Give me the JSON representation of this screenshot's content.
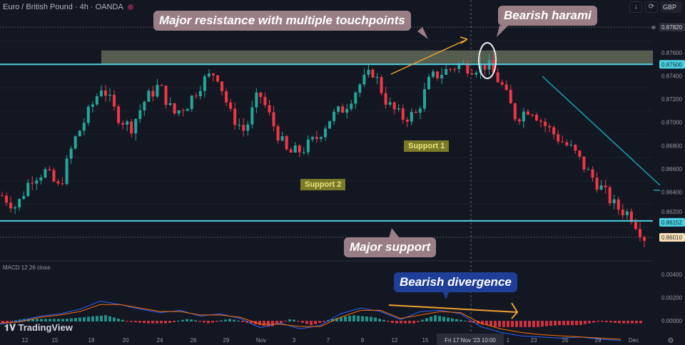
{
  "header": {
    "symbol": "Euro / British Pound · 4h · OANDA",
    "currency": "GBP"
  },
  "annotations": {
    "resistance": "Major resistance with multiple touchpoints",
    "harami": "Bearish harami",
    "support": "Major support",
    "divergence": "Bearish divergence",
    "support1": "Support 1",
    "support2": "Support 2"
  },
  "macd_label": "MACD 12 26 close",
  "logo": "TradingView",
  "crosshair_label": "Fri 17 Nov '23   10:00",
  "colors": {
    "up": "#26a69a",
    "down": "#f23645",
    "level": "#4dd0e1",
    "zone": "#6b7560",
    "arrow": "#f0a030",
    "macd": "#2962ff",
    "signal": "#ff6d00"
  },
  "chart_data": {
    "type": "candlestick",
    "title": "Euro / British Pound · 4h · OANDA",
    "ylim": [
      0.86,
      0.879
    ],
    "y_ticks": [
      "0.87820",
      "0.87600",
      "0.87400",
      "0.87200",
      "0.87000",
      "0.86800",
      "0.86600",
      "0.86400",
      "0.86200"
    ],
    "price_labels": {
      "resistance": "0.87500",
      "support": "0.86152",
      "last": "0.86010",
      "top": "0.87820"
    },
    "x_ticks": [
      "12",
      "15",
      "18",
      "20",
      "24",
      "26",
      "29",
      "Nov",
      "3",
      "7",
      "9",
      "12",
      "15",
      "1",
      "23",
      "26",
      "29",
      "Dec"
    ],
    "close_path": [
      0.8637,
      0.8627,
      0.8652,
      0.8658,
      0.8643,
      0.8683,
      0.8707,
      0.8732,
      0.8707,
      0.8695,
      0.8719,
      0.8732,
      0.8707,
      0.8716,
      0.8735,
      0.8744,
      0.8707,
      0.8692,
      0.8726,
      0.8698,
      0.8673,
      0.8676,
      0.8686,
      0.8704,
      0.8713,
      0.8732,
      0.8744,
      0.8716,
      0.8704,
      0.8707,
      0.8738,
      0.8744,
      0.875,
      0.8747,
      0.875,
      0.8732,
      0.8704,
      0.8713,
      0.8698,
      0.8686,
      0.8676,
      0.8658,
      0.8643,
      0.8627,
      0.8621,
      0.8601
    ],
    "levels": {
      "resistance": 0.875,
      "support": 0.86152,
      "zone": [
        0.875,
        0.8762
      ]
    },
    "macd": {
      "y_ticks": [
        "0.00400",
        "0.00200",
        "0.00000"
      ],
      "ylim": [
        -0.0008,
        0.0045
      ],
      "macd_path": [
        -0.0003,
        0.0,
        0.0004,
        0.0006,
        0.001,
        0.0017,
        0.0014,
        0.001,
        0.0007,
        0.0009,
        0.0004,
        0.0006,
        0.0002,
        -0.0006,
        -0.0002,
        -0.0007,
        -0.0004,
        0.0006,
        0.0011,
        0.0008,
        0.0001,
        0.0008,
        0.0009,
        0.0006,
        -0.0005,
        -0.001,
        -0.0013,
        -0.0014,
        -0.0015,
        -0.0014,
        -0.0016,
        -0.0017
      ],
      "signal_path": [
        -0.0002,
        -0.0001,
        0.0003,
        0.0005,
        0.0008,
        0.0014,
        0.0014,
        0.0011,
        0.0008,
        0.0008,
        0.0005,
        0.0005,
        0.0003,
        -0.0003,
        -0.0003,
        -0.0005,
        -0.0005,
        0.0003,
        0.0009,
        0.0009,
        0.0002,
        0.0005,
        0.0008,
        0.0007,
        -0.0002,
        -0.0007,
        -0.001,
        -0.0012,
        -0.0013,
        -0.0014,
        -0.0015,
        -0.0016
      ]
    }
  }
}
